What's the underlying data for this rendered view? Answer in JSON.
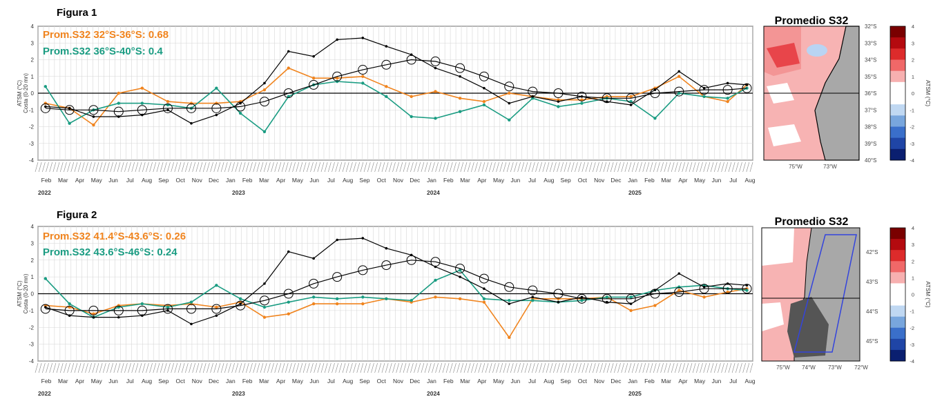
{
  "figures": [
    {
      "label": "Figura 1",
      "ylabel_line1": "ATSM (°C)",
      "ylabel_line2": "Costa (0-20 mn)",
      "yticks": [
        "4",
        "3",
        "2",
        "1",
        "0",
        "-1",
        "-2",
        "-3",
        "-4"
      ],
      "months": [
        "Feb",
        "Mar",
        "Apr",
        "May",
        "Jun",
        "Jul",
        "Aug",
        "Sep",
        "Oct",
        "Nov",
        "Dec",
        "Jan",
        "Feb",
        "Mar",
        "Apr",
        "May",
        "Jun",
        "Jul",
        "Aug",
        "Sep",
        "Oct",
        "Nov",
        "Dec",
        "Jan",
        "Feb",
        "Mar",
        "Apr",
        "May",
        "Jun",
        "Jul",
        "Aug",
        "Sep",
        "Oct",
        "Nov",
        "Dec",
        "Jan",
        "Feb",
        "Mar",
        "Apr",
        "May",
        "Jun",
        "Jul",
        "Aug"
      ],
      "years": [
        "2022",
        "2023",
        "2024",
        "2025"
      ],
      "legend": [
        {
          "text": "Prom.S32 32°S-36°S:  0.68",
          "color": "#f0841e"
        },
        {
          "text": "Prom.S32 36°S-40°S:  0.4",
          "color": "#1a9c82"
        }
      ],
      "map": {
        "title": "Promedio S32",
        "lat_labels": [
          "32°S",
          "33°S",
          "34°S",
          "35°S",
          "36°S",
          "37°S",
          "38°S",
          "39°S",
          "40°S"
        ],
        "lon_labels": [
          "75°W",
          "73°W"
        ],
        "colorbar_ticks": [
          "4",
          "3",
          "2",
          "1",
          "0",
          "-1",
          "-2",
          "-3",
          "-4"
        ],
        "colorbar_label": "ATSM (°C)"
      }
    },
    {
      "label": "Figura 2",
      "ylabel_line1": "ATSM (°C)",
      "ylabel_line2": "Costa (0-20 mn)",
      "yticks": [
        "4",
        "3",
        "2",
        "1",
        "0",
        "-1",
        "-2",
        "-3",
        "-4"
      ],
      "months": [
        "Feb",
        "Mar",
        "Apr",
        "May",
        "Jun",
        "Jul",
        "Aug",
        "Sep",
        "Oct",
        "Nov",
        "Dec",
        "Jan",
        "Feb",
        "Mar",
        "Apr",
        "May",
        "Jun",
        "Jul",
        "Aug",
        "Sep",
        "Oct",
        "Nov",
        "Dec",
        "Jan",
        "Feb",
        "Mar",
        "Apr",
        "May",
        "Jun",
        "Jul",
        "Aug",
        "Sep",
        "Oct",
        "Nov",
        "Dec",
        "Jan",
        "Feb",
        "Mar",
        "Apr",
        "May",
        "Jun",
        "Jul",
        "Aug"
      ],
      "years": [
        "2022",
        "2023",
        "2024",
        "2025"
      ],
      "legend": [
        {
          "text": "Prom.S32 41.4°S-43.6°S:  0.26",
          "color": "#f0841e"
        },
        {
          "text": "Prom.S32 43.6°S-46°S:  0.24",
          "color": "#1a9c82"
        }
      ],
      "map": {
        "title": "Promedio S32",
        "lat_labels": [
          "42°S",
          "43°S",
          "44°S",
          "45°S"
        ],
        "lon_labels": [
          "75°W",
          "74°W",
          "73°W",
          "72°W"
        ],
        "colorbar_ticks": [
          "4",
          "3",
          "2",
          "1",
          "0",
          "-1",
          "-2",
          "-3",
          "-4"
        ],
        "colorbar_label": "ATSM (°C)"
      }
    }
  ],
  "chart_data": [
    {
      "type": "line",
      "title": "",
      "ylabel": "ATSM (°C) Costa (0-20 mn)",
      "ylim": [
        -4,
        4
      ],
      "x_range": [
        "2022-01-01",
        "2025-08-31"
      ],
      "grid": true,
      "legend_position": "top-left",
      "series": [
        {
          "name": "Prom.S32 32°S-36°S",
          "color": "#f0841e",
          "x": [
            "2022-01-15",
            "2022-03-01",
            "2022-04-15",
            "2022-06-01",
            "2022-07-15",
            "2022-09-01",
            "2022-10-15",
            "2022-12-01",
            "2023-01-15",
            "2023-03-01",
            "2023-04-15",
            "2023-06-01",
            "2023-07-15",
            "2023-09-01",
            "2023-10-15",
            "2023-12-01",
            "2024-01-15",
            "2024-03-01",
            "2024-04-15",
            "2024-06-01",
            "2024-07-15",
            "2024-09-01",
            "2024-10-15",
            "2024-12-01",
            "2025-01-15",
            "2025-03-01",
            "2025-04-15",
            "2025-06-01",
            "2025-07-15",
            "2025-08-20"
          ],
          "y": [
            -0.6,
            -0.9,
            -1.9,
            0.0,
            0.3,
            -0.5,
            -0.6,
            -0.6,
            -0.5,
            0.2,
            1.5,
            0.9,
            0.9,
            1.0,
            0.4,
            -0.2,
            0.1,
            -0.3,
            -0.5,
            0.0,
            -0.2,
            -0.4,
            -0.4,
            -0.2,
            -0.2,
            0.3,
            1.0,
            -0.2,
            -0.5,
            0.5
          ]
        },
        {
          "name": "Prom.S32 36°S-40°S",
          "color": "#1a9c82",
          "x": [
            "2022-01-15",
            "2022-03-01",
            "2022-04-15",
            "2022-06-01",
            "2022-07-15",
            "2022-09-01",
            "2022-10-15",
            "2022-12-01",
            "2023-01-15",
            "2023-03-01",
            "2023-04-15",
            "2023-06-01",
            "2023-07-15",
            "2023-09-01",
            "2023-10-15",
            "2023-12-01",
            "2024-01-15",
            "2024-03-01",
            "2024-04-15",
            "2024-06-01",
            "2024-07-15",
            "2024-09-01",
            "2024-10-15",
            "2024-12-01",
            "2025-01-15",
            "2025-03-01",
            "2025-04-15",
            "2025-06-01",
            "2025-07-15",
            "2025-08-20"
          ],
          "y": [
            0.4,
            -1.8,
            -1.0,
            -0.6,
            -0.6,
            -0.7,
            -0.9,
            0.3,
            -1.2,
            -2.3,
            -0.2,
            0.5,
            0.7,
            0.6,
            -0.2,
            -1.4,
            -1.5,
            -1.1,
            -0.7,
            -1.6,
            -0.3,
            -0.8,
            -0.6,
            -0.3,
            -0.5,
            -1.5,
            0.0,
            -0.2,
            -0.3,
            0.3
          ]
        },
        {
          "name": "",
          "color": "#000000",
          "marker": "dot",
          "x": [
            "2022-01-15",
            "2022-03-01",
            "2022-04-15",
            "2022-06-01",
            "2022-07-15",
            "2022-09-01",
            "2022-10-15",
            "2022-12-01",
            "2023-01-15",
            "2023-03-01",
            "2023-04-15",
            "2023-06-01",
            "2023-07-15",
            "2023-09-01",
            "2023-10-15",
            "2023-12-01",
            "2024-01-15",
            "2024-03-01",
            "2024-04-15",
            "2024-06-01",
            "2024-07-15",
            "2024-09-01",
            "2024-10-15",
            "2024-12-01",
            "2025-01-15",
            "2025-03-01",
            "2025-04-15",
            "2025-06-01",
            "2025-07-15",
            "2025-08-20"
          ],
          "y": [
            -0.8,
            -0.9,
            -1.4,
            -1.4,
            -1.3,
            -1.0,
            -1.8,
            -1.3,
            -0.6,
            0.6,
            2.5,
            2.2,
            3.2,
            3.3,
            2.8,
            2.3,
            1.5,
            1.0,
            0.3,
            -0.6,
            -0.2,
            -0.5,
            -0.2,
            -0.5,
            -0.7,
            0.2,
            1.3,
            0.3,
            0.6,
            0.5
          ]
        },
        {
          "name": "",
          "color": "#000000",
          "marker": "open-circle",
          "x": [
            "2022-01-15",
            "2022-03-01",
            "2022-04-15",
            "2022-06-01",
            "2022-07-15",
            "2022-09-01",
            "2022-10-15",
            "2022-12-01",
            "2023-01-15",
            "2023-03-01",
            "2023-04-15",
            "2023-06-01",
            "2023-07-15",
            "2023-09-01",
            "2023-10-15",
            "2023-12-01",
            "2024-01-15",
            "2024-03-01",
            "2024-04-15",
            "2024-06-01",
            "2024-07-15",
            "2024-09-01",
            "2024-10-15",
            "2024-12-01",
            "2025-01-15",
            "2025-03-01",
            "2025-04-15",
            "2025-06-01",
            "2025-07-15",
            "2025-08-20"
          ],
          "y": [
            -0.9,
            -1.0,
            -1.0,
            -1.1,
            -1.0,
            -0.9,
            -0.9,
            -0.9,
            -0.8,
            -0.5,
            0.0,
            0.5,
            1.0,
            1.4,
            1.7,
            2.0,
            1.9,
            1.5,
            1.0,
            0.4,
            0.1,
            0.0,
            -0.2,
            -0.3,
            -0.3,
            0.0,
            0.1,
            0.2,
            0.2,
            0.3
          ]
        }
      ]
    },
    {
      "type": "line",
      "title": "",
      "ylabel": "ATSM (°C) Costa (0-20 mn)",
      "ylim": [
        -4,
        4
      ],
      "x_range": [
        "2022-01-01",
        "2025-08-31"
      ],
      "grid": true,
      "legend_position": "top-left",
      "series": [
        {
          "name": "Prom.S32 41.4°S-43.6°S",
          "color": "#f0841e",
          "x": [
            "2022-01-15",
            "2022-03-01",
            "2022-04-15",
            "2022-06-01",
            "2022-07-15",
            "2022-09-01",
            "2022-10-15",
            "2022-12-01",
            "2023-01-15",
            "2023-03-01",
            "2023-04-15",
            "2023-06-01",
            "2023-07-15",
            "2023-09-01",
            "2023-10-15",
            "2023-12-01",
            "2024-01-15",
            "2024-03-01",
            "2024-04-15",
            "2024-06-01",
            "2024-07-15",
            "2024-09-01",
            "2024-10-15",
            "2024-12-01",
            "2025-01-15",
            "2025-03-01",
            "2025-04-15",
            "2025-06-01",
            "2025-07-15",
            "2025-08-20"
          ],
          "y": [
            -0.7,
            -0.8,
            -1.2,
            -0.7,
            -0.6,
            -0.7,
            -0.6,
            -0.8,
            -0.5,
            -1.4,
            -1.2,
            -0.6,
            -0.6,
            -0.6,
            -0.3,
            -0.5,
            -0.2,
            -0.3,
            -0.5,
            -2.6,
            -0.3,
            -0.3,
            -0.3,
            -0.2,
            -1.0,
            -0.7,
            0.2,
            -0.2,
            0.1,
            0.3
          ]
        },
        {
          "name": "Prom.S32 43.6°S-46°S",
          "color": "#1a9c82",
          "x": [
            "2022-01-15",
            "2022-03-01",
            "2022-04-15",
            "2022-06-01",
            "2022-07-15",
            "2022-09-01",
            "2022-10-15",
            "2022-12-01",
            "2023-01-15",
            "2023-03-01",
            "2023-04-15",
            "2023-06-01",
            "2023-07-15",
            "2023-09-01",
            "2023-10-15",
            "2023-12-01",
            "2024-01-15",
            "2024-03-01",
            "2024-04-15",
            "2024-06-01",
            "2024-07-15",
            "2024-09-01",
            "2024-10-15",
            "2024-12-01",
            "2025-01-15",
            "2025-03-01",
            "2025-04-15",
            "2025-06-01",
            "2025-07-15",
            "2025-08-20"
          ],
          "y": [
            0.9,
            -0.6,
            -1.4,
            -0.8,
            -0.6,
            -0.8,
            -0.5,
            0.5,
            -0.3,
            -0.8,
            -0.5,
            -0.2,
            -0.3,
            -0.2,
            -0.3,
            -0.4,
            0.8,
            1.4,
            -0.3,
            -0.4,
            -0.4,
            -0.5,
            -0.4,
            -0.2,
            -0.2,
            0.2,
            0.4,
            0.5,
            0.3,
            0.2
          ]
        },
        {
          "name": "",
          "color": "#000000",
          "marker": "dot",
          "x": [
            "2022-01-15",
            "2022-03-01",
            "2022-04-15",
            "2022-06-01",
            "2022-07-15",
            "2022-09-01",
            "2022-10-15",
            "2022-12-01",
            "2023-01-15",
            "2023-03-01",
            "2023-04-15",
            "2023-06-01",
            "2023-07-15",
            "2023-09-01",
            "2023-10-15",
            "2023-12-01",
            "2024-01-15",
            "2024-03-01",
            "2024-04-15",
            "2024-06-01",
            "2024-07-15",
            "2024-09-01",
            "2024-10-15",
            "2024-12-01",
            "2025-01-15",
            "2025-03-01",
            "2025-04-15",
            "2025-06-01",
            "2025-07-15",
            "2025-08-20"
          ],
          "y": [
            -0.8,
            -1.3,
            -1.4,
            -1.4,
            -1.3,
            -1.0,
            -1.8,
            -1.3,
            -0.6,
            0.6,
            2.5,
            2.1,
            3.2,
            3.3,
            2.7,
            2.3,
            1.6,
            1.0,
            0.3,
            -0.6,
            -0.2,
            -0.5,
            -0.2,
            -0.5,
            -0.6,
            0.2,
            1.2,
            0.4,
            0.6,
            0.5
          ]
        },
        {
          "name": "",
          "color": "#000000",
          "marker": "open-circle",
          "x": [
            "2022-01-15",
            "2022-03-01",
            "2022-04-15",
            "2022-06-01",
            "2022-07-15",
            "2022-09-01",
            "2022-10-15",
            "2022-12-01",
            "2023-01-15",
            "2023-03-01",
            "2023-04-15",
            "2023-06-01",
            "2023-07-15",
            "2023-09-01",
            "2023-10-15",
            "2023-12-01",
            "2024-01-15",
            "2024-03-01",
            "2024-04-15",
            "2024-06-01",
            "2024-07-15",
            "2024-09-01",
            "2024-10-15",
            "2024-12-01",
            "2025-01-15",
            "2025-03-01",
            "2025-04-15",
            "2025-06-01",
            "2025-07-15",
            "2025-08-20"
          ],
          "y": [
            -0.9,
            -1.0,
            -1.0,
            -1.0,
            -1.0,
            -0.9,
            -0.9,
            -0.9,
            -0.7,
            -0.4,
            0.0,
            0.6,
            1.0,
            1.4,
            1.7,
            2.0,
            1.9,
            1.5,
            0.9,
            0.4,
            0.2,
            0.0,
            -0.3,
            -0.3,
            -0.3,
            0.0,
            0.1,
            0.3,
            0.3,
            0.3
          ]
        }
      ]
    }
  ]
}
